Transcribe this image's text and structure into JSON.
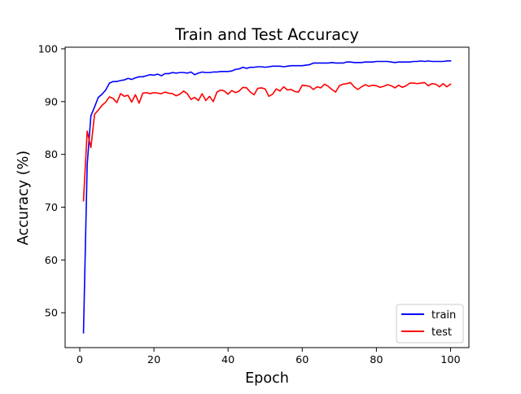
{
  "chart_data": {
    "type": "line",
    "title": "Train and Test Accuracy",
    "xlabel": "Epoch",
    "ylabel": "Accuracy (%)",
    "xlim": [
      -3.95,
      104.95
    ],
    "ylim": [
      43.4,
      100.3
    ],
    "xticks": [
      0,
      20,
      40,
      60,
      80,
      100
    ],
    "yticks": [
      50,
      60,
      70,
      80,
      90,
      100
    ],
    "grid": false,
    "legend_position": "lower-right",
    "x": [
      1,
      2,
      3,
      4,
      5,
      6,
      7,
      8,
      9,
      10,
      11,
      12,
      13,
      14,
      15,
      16,
      17,
      18,
      19,
      20,
      21,
      22,
      23,
      24,
      25,
      26,
      27,
      28,
      29,
      30,
      31,
      32,
      33,
      34,
      35,
      36,
      37,
      38,
      39,
      40,
      41,
      42,
      43,
      44,
      45,
      46,
      47,
      48,
      49,
      50,
      51,
      52,
      53,
      54,
      55,
      56,
      57,
      58,
      59,
      60,
      61,
      62,
      63,
      64,
      65,
      66,
      67,
      68,
      69,
      70,
      71,
      72,
      73,
      74,
      75,
      76,
      77,
      78,
      79,
      80,
      81,
      82,
      83,
      84,
      85,
      86,
      87,
      88,
      89,
      90,
      91,
      92,
      93,
      94,
      95,
      96,
      97,
      98,
      99,
      100
    ],
    "series": [
      {
        "name": "train",
        "color": "#0000ff",
        "values": [
          46.2,
          78.0,
          87.3,
          89.0,
          90.8,
          91.4,
          92.2,
          93.5,
          93.8,
          93.8,
          94.0,
          94.1,
          94.4,
          94.2,
          94.5,
          94.7,
          94.7,
          94.9,
          95.1,
          95.0,
          95.2,
          94.9,
          95.3,
          95.3,
          95.5,
          95.4,
          95.5,
          95.5,
          95.4,
          95.6,
          95.1,
          95.4,
          95.6,
          95.5,
          95.5,
          95.6,
          95.6,
          95.7,
          95.7,
          95.7,
          95.8,
          96.1,
          96.2,
          96.5,
          96.3,
          96.5,
          96.5,
          96.6,
          96.6,
          96.5,
          96.6,
          96.7,
          96.7,
          96.7,
          96.6,
          96.7,
          96.8,
          96.8,
          96.8,
          96.8,
          96.9,
          97.0,
          97.3,
          97.3,
          97.3,
          97.3,
          97.3,
          97.4,
          97.3,
          97.3,
          97.3,
          97.5,
          97.5,
          97.4,
          97.4,
          97.4,
          97.5,
          97.5,
          97.5,
          97.6,
          97.6,
          97.6,
          97.6,
          97.5,
          97.4,
          97.5,
          97.5,
          97.5,
          97.5,
          97.6,
          97.6,
          97.7,
          97.6,
          97.7,
          97.6,
          97.6,
          97.6,
          97.6,
          97.7,
          97.7
        ]
      },
      {
        "name": "test",
        "color": "#ff0000",
        "values": [
          71.2,
          84.4,
          81.3,
          87.6,
          88.4,
          89.3,
          89.9,
          90.9,
          90.6,
          89.8,
          91.5,
          91.0,
          91.2,
          89.9,
          91.3,
          89.7,
          91.6,
          91.7,
          91.5,
          91.7,
          91.6,
          91.5,
          91.8,
          91.6,
          91.5,
          91.1,
          91.4,
          92.0,
          91.5,
          90.4,
          90.8,
          90.2,
          91.5,
          90.2,
          91.0,
          90.0,
          91.8,
          92.2,
          92.0,
          91.4,
          92.1,
          91.7,
          92.0,
          92.7,
          92.6,
          91.8,
          91.3,
          92.5,
          92.6,
          92.4,
          91.0,
          91.4,
          92.4,
          92.0,
          92.8,
          92.2,
          92.3,
          91.9,
          91.8,
          93.1,
          93.0,
          92.9,
          92.3,
          92.8,
          92.6,
          93.3,
          92.9,
          92.3,
          91.8,
          93.0,
          93.3,
          93.4,
          93.6,
          92.8,
          92.3,
          92.8,
          93.2,
          92.9,
          93.1,
          93.0,
          92.7,
          92.9,
          93.2,
          93.0,
          92.6,
          93.1,
          92.7,
          93.0,
          93.5,
          93.5,
          93.4,
          93.5,
          93.6,
          93.0,
          93.4,
          93.3,
          92.8,
          93.4,
          92.8,
          93.3
        ]
      }
    ]
  }
}
